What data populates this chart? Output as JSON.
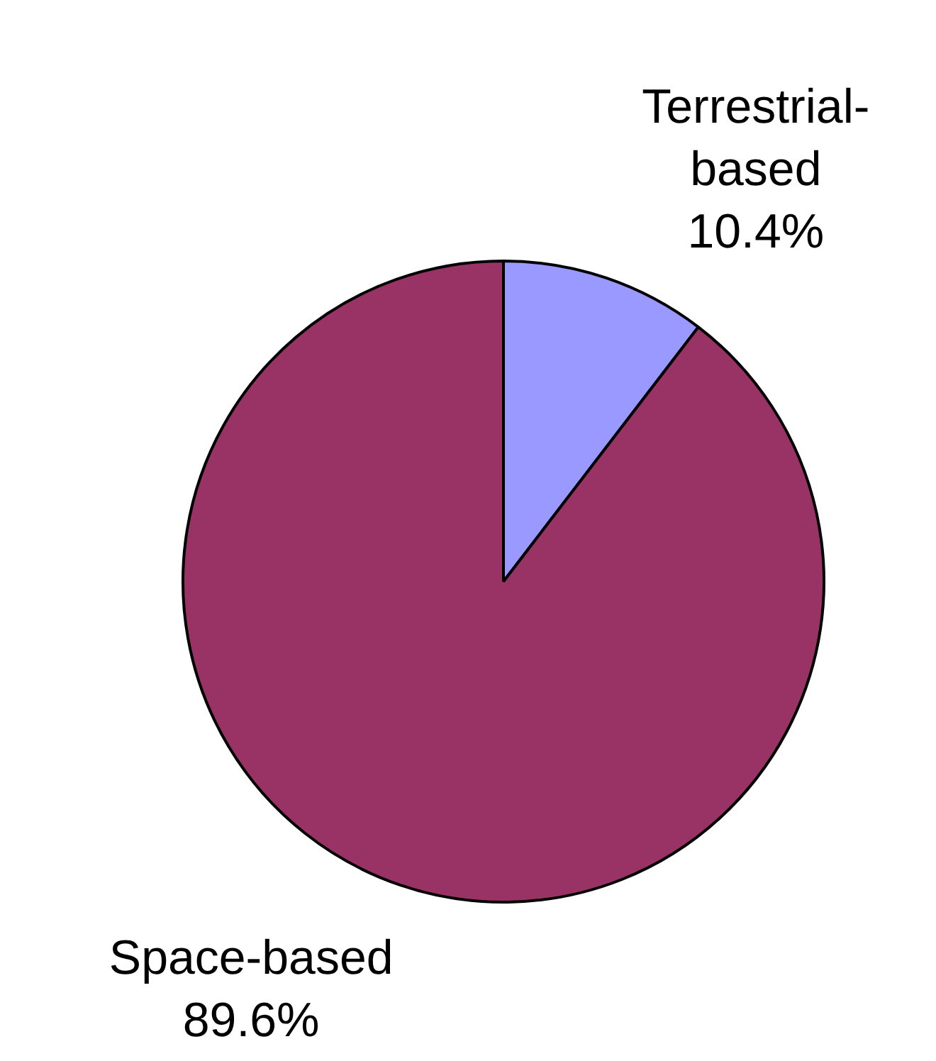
{
  "chart_data": {
    "type": "pie",
    "categories": [
      "Terrestrial-based",
      "Space-based"
    ],
    "values": [
      10.4,
      89.6
    ],
    "colors": [
      "#9999ff",
      "#993366"
    ],
    "value_labels": [
      "10.4%",
      "89.6%"
    ],
    "legend": false
  }
}
